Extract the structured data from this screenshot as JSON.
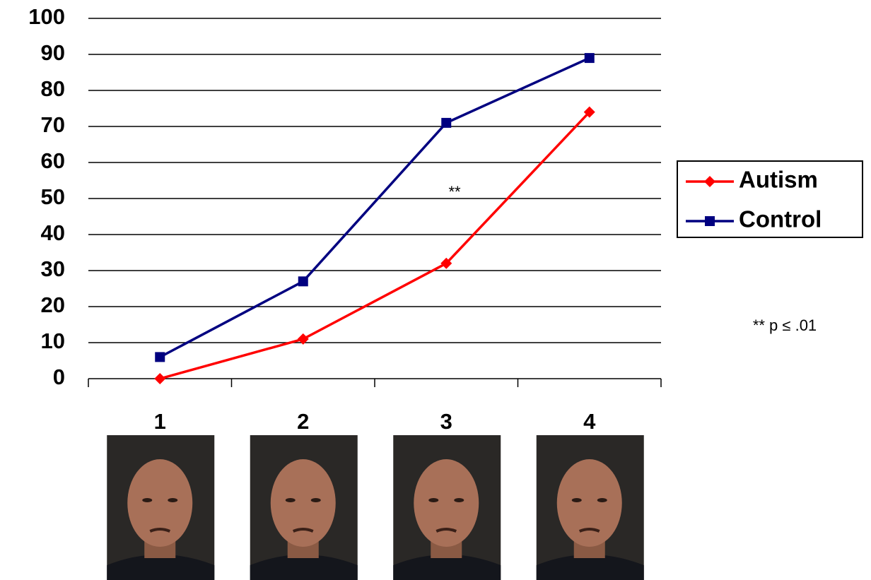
{
  "chart_data": {
    "type": "line",
    "categories": [
      "1",
      "2",
      "3",
      "4"
    ],
    "series": [
      {
        "name": "Autism",
        "color": "#ff0000",
        "marker": "diamond",
        "values": [
          0,
          11,
          32,
          74
        ]
      },
      {
        "name": "Control",
        "color": "#000080",
        "marker": "square",
        "values": [
          6,
          27,
          71,
          89
        ]
      }
    ],
    "ylim": [
      0,
      100
    ],
    "yticks": [
      0,
      10,
      20,
      30,
      40,
      50,
      60,
      70,
      80,
      90,
      100
    ],
    "grid": true,
    "legend": "right",
    "annotations": [
      "**",
      "** p ≤ .01"
    ]
  }
}
